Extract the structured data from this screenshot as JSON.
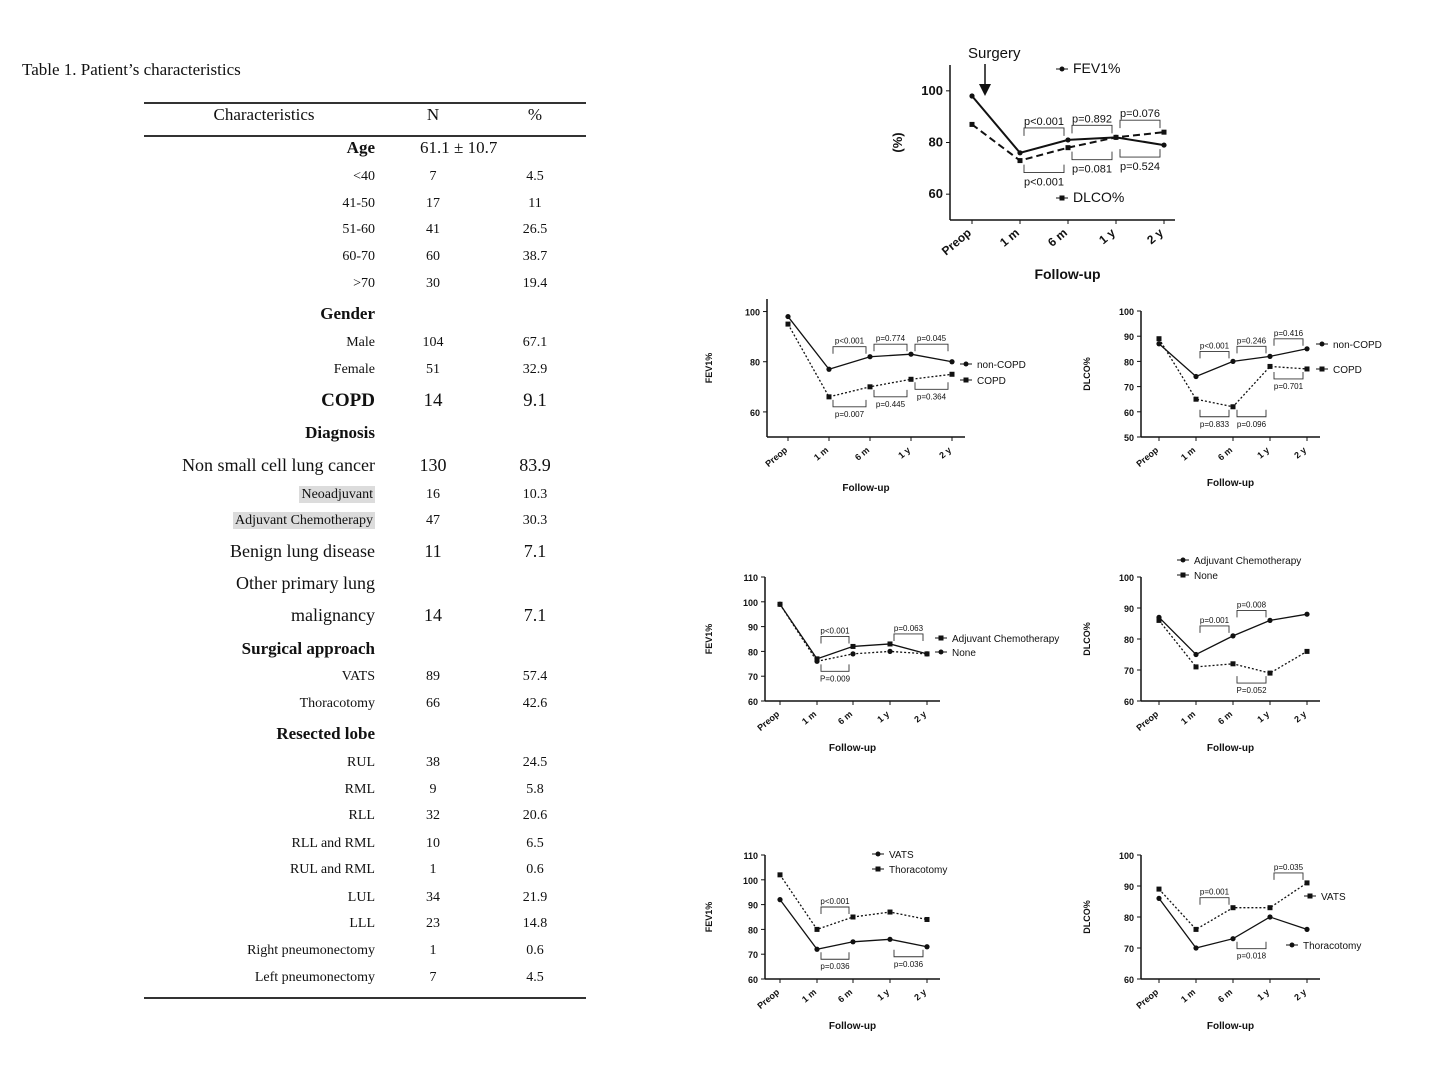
{
  "table": {
    "title": "Table 1. Patient’s characteristics",
    "headers": [
      "Characteristics",
      "N",
      "%"
    ],
    "rows": [
      {
        "label": "Age",
        "n": "61.1 ± 10.7",
        "pct": "",
        "style": "section",
        "merged": true
      },
      {
        "label": "<40",
        "n": "7",
        "pct": "4.5",
        "style": "sub"
      },
      {
        "label": "41-50",
        "n": "17",
        "pct": "11",
        "style": "sub"
      },
      {
        "label": "51-60",
        "n": "41",
        "pct": "26.5",
        "style": "sub"
      },
      {
        "label": "60-70",
        "n": "60",
        "pct": "38.7",
        "style": "sub"
      },
      {
        "label": ">70",
        "n": "30",
        "pct": "19.4",
        "style": "sub"
      },
      {
        "label": "Gender",
        "n": "",
        "pct": "",
        "style": "section"
      },
      {
        "label": "Male",
        "n": "104",
        "pct": "67.1",
        "style": "sub"
      },
      {
        "label": "Female",
        "n": "51",
        "pct": "32.9",
        "style": "sub"
      },
      {
        "label": "COPD",
        "n": "14",
        "pct": "9.1",
        "style": "section-big"
      },
      {
        "label": "Diagnosis",
        "n": "",
        "pct": "",
        "style": "section"
      },
      {
        "label": "Non small cell lung cancer",
        "n": "130",
        "pct": "83.9",
        "style": "large"
      },
      {
        "label": "Neoadjuvant",
        "n": "16",
        "pct": "10.3",
        "style": "sub-hl"
      },
      {
        "label": "Adjuvant Chemotherapy",
        "n": "47",
        "pct": "30.3",
        "style": "sub-hl"
      },
      {
        "label": "Benign lung disease",
        "n": "11",
        "pct": "7.1",
        "style": "large"
      },
      {
        "label": "Other primary lung",
        "n": "",
        "pct": "",
        "style": "large"
      },
      {
        "label": "malignancy",
        "n": "14",
        "pct": "7.1",
        "style": "large"
      },
      {
        "label": "Surgical approach",
        "n": "",
        "pct": "",
        "style": "section"
      },
      {
        "label": "VATS",
        "n": "89",
        "pct": "57.4",
        "style": "sub"
      },
      {
        "label": "Thoracotomy",
        "n": "66",
        "pct": "42.6",
        "style": "sub"
      },
      {
        "label": "Resected lobe",
        "n": "",
        "pct": "",
        "style": "section"
      },
      {
        "label": "RUL",
        "n": "38",
        "pct": "24.5",
        "style": "sub"
      },
      {
        "label": "RML",
        "n": "9",
        "pct": "5.8",
        "style": "sub"
      },
      {
        "label": "RLL",
        "n": "32",
        "pct": "20.6",
        "style": "sub"
      },
      {
        "label": "RLL and RML",
        "n": "10",
        "pct": "6.5",
        "style": "sub"
      },
      {
        "label": "RUL and RML",
        "n": "1",
        "pct": "0.6",
        "style": "sub"
      },
      {
        "label": "LUL",
        "n": "34",
        "pct": "21.9",
        "style": "sub"
      },
      {
        "label": "LLL",
        "n": "23",
        "pct": "14.8",
        "style": "sub"
      },
      {
        "label": "Right pneumonectomy",
        "n": "1",
        "pct": "0.6",
        "style": "sub"
      },
      {
        "label": "Left pneumonectomy",
        "n": "7",
        "pct": "4.5",
        "style": "sub"
      }
    ]
  },
  "chart_data": [
    {
      "type": "line",
      "x": [
        "Preop",
        "1 m",
        "6 m",
        "1 y",
        "2 y"
      ],
      "xlabel": "Follow-up",
      "ylabel": "(%)",
      "ylim": [
        50,
        110
      ],
      "yticks": [
        60,
        80,
        100
      ],
      "annotation": "Surgery",
      "series": [
        {
          "name": "FEV1%",
          "style": "solid",
          "marker": "circle",
          "values": [
            98,
            76,
            81,
            82,
            79
          ]
        },
        {
          "name": "DLCO%",
          "style": "dashed",
          "marker": "square",
          "values": [
            87,
            73,
            78,
            82,
            84
          ]
        }
      ],
      "pvalues": [
        {
          "text": "p<0.001",
          "from": 1,
          "to": 2,
          "pos": "above"
        },
        {
          "text": "p=0.892",
          "from": 2,
          "to": 3,
          "pos": "above"
        },
        {
          "text": "p=0.076",
          "from": 3,
          "to": 4,
          "pos": "above"
        },
        {
          "text": "p<0.001",
          "from": 1,
          "to": 2,
          "pos": "below"
        },
        {
          "text": "p=0.081",
          "from": 2,
          "to": 3,
          "pos": "below"
        },
        {
          "text": "p=0.524",
          "from": 3,
          "to": 4,
          "pos": "below"
        }
      ]
    },
    {
      "type": "line",
      "x": [
        "Preop",
        "1 m",
        "6 m",
        "1 y",
        "2 y"
      ],
      "xlabel": "Follow-up",
      "ylabel": "FEV1%",
      "ylim": [
        50,
        105
      ],
      "yticks": [
        60,
        80,
        100
      ],
      "series": [
        {
          "name": "non-COPD",
          "style": "solid",
          "marker": "circle",
          "values": [
            98,
            77,
            82,
            83,
            80
          ]
        },
        {
          "name": "COPD",
          "style": "dotted",
          "marker": "square",
          "values": [
            95,
            66,
            70,
            73,
            75
          ]
        }
      ],
      "pvalues": [
        {
          "text": "p<0.001",
          "from": 1,
          "to": 2,
          "pos": "above"
        },
        {
          "text": "p=0.774",
          "from": 2,
          "to": 3,
          "pos": "above"
        },
        {
          "text": "p=0.045",
          "from": 3,
          "to": 4,
          "pos": "above"
        },
        {
          "text": "p=0.007",
          "from": 1,
          "to": 2,
          "pos": "below"
        },
        {
          "text": "p=0.445",
          "from": 2,
          "to": 3,
          "pos": "below"
        },
        {
          "text": "p=0.364",
          "from": 3,
          "to": 4,
          "pos": "below"
        }
      ]
    },
    {
      "type": "line",
      "x": [
        "Preop",
        "1 m",
        "6 m",
        "1 y",
        "2 y"
      ],
      "xlabel": "Follow-up",
      "ylabel": "DLCO%",
      "ylim": [
        50,
        100
      ],
      "yticks": [
        50,
        60,
        70,
        80,
        90,
        100
      ],
      "series": [
        {
          "name": "non-COPD",
          "style": "solid",
          "marker": "circle",
          "values": [
            87,
            74,
            80,
            82,
            85
          ]
        },
        {
          "name": "COPD",
          "style": "dotted",
          "marker": "square",
          "values": [
            89,
            65,
            62,
            78,
            77
          ]
        }
      ],
      "pvalues": [
        {
          "text": "p<0.001",
          "from": 1,
          "to": 2,
          "pos": "above"
        },
        {
          "text": "p=0.246",
          "from": 2,
          "to": 3,
          "pos": "above"
        },
        {
          "text": "p=0.416",
          "from": 3,
          "to": 4,
          "pos": "above"
        },
        {
          "text": "p=0.833",
          "from": 1,
          "to": 2,
          "pos": "below"
        },
        {
          "text": "p=0.096",
          "from": 2,
          "to": 3,
          "pos": "below"
        },
        {
          "text": "p=0.701",
          "from": 3,
          "to": 4,
          "pos": "below"
        }
      ]
    },
    {
      "type": "line",
      "x": [
        "Preop",
        "1 m",
        "6 m",
        "1 y",
        "2 y"
      ],
      "xlabel": "Follow-up",
      "ylabel": "FEV1%",
      "ylim": [
        60,
        110
      ],
      "yticks": [
        60,
        70,
        80,
        90,
        100,
        110
      ],
      "series": [
        {
          "name": "Adjuvant Chemotherapy",
          "style": "solid",
          "marker": "square",
          "values": [
            99,
            77,
            82,
            83,
            79
          ]
        },
        {
          "name": "None",
          "style": "dotted",
          "marker": "circle",
          "values": [
            99,
            76,
            79,
            80,
            79
          ]
        }
      ],
      "pvalues": [
        {
          "text": "p<0.001",
          "from": 1,
          "to": 2,
          "pos": "above"
        },
        {
          "text": "p=0.063",
          "from": 3,
          "to": 4,
          "pos": "above"
        },
        {
          "text": "P=0.009",
          "from": 1,
          "to": 2,
          "pos": "below"
        }
      ]
    },
    {
      "type": "line",
      "x": [
        "Preop",
        "1 m",
        "6 m",
        "1 y",
        "2 y"
      ],
      "xlabel": "Follow-up",
      "ylabel": "DLCO%",
      "ylim": [
        60,
        100
      ],
      "yticks": [
        60,
        70,
        80,
        90,
        100
      ],
      "series": [
        {
          "name": "Adjuvant Chemotherapy",
          "style": "solid",
          "marker": "circle",
          "values": [
            87,
            75,
            81,
            86,
            88
          ]
        },
        {
          "name": "None",
          "style": "dotted",
          "marker": "square",
          "values": [
            86,
            71,
            72,
            69,
            76
          ]
        }
      ],
      "pvalues": [
        {
          "text": "p=0.001",
          "from": 1,
          "to": 2,
          "pos": "above"
        },
        {
          "text": "p=0.008",
          "from": 2,
          "to": 3,
          "pos": "above"
        },
        {
          "text": "P=0.052",
          "from": 2,
          "to": 3,
          "pos": "below"
        }
      ]
    },
    {
      "type": "line",
      "x": [
        "Preop",
        "1 m",
        "6 m",
        "1 y",
        "2 y"
      ],
      "xlabel": "Follow-up",
      "ylabel": "FEV1%",
      "ylim": [
        60,
        110
      ],
      "yticks": [
        60,
        70,
        80,
        90,
        100,
        110
      ],
      "series": [
        {
          "name": "VATS",
          "style": "solid",
          "marker": "circle",
          "values": [
            92,
            72,
            75,
            76,
            73
          ]
        },
        {
          "name": "Thoracotomy",
          "style": "dotted",
          "marker": "square",
          "values": [
            102,
            80,
            85,
            87,
            84
          ]
        }
      ],
      "pvalues": [
        {
          "text": "p<0.001",
          "from": 1,
          "to": 2,
          "pos": "above"
        },
        {
          "text": "p=0.036",
          "from": 1,
          "to": 2,
          "pos": "below"
        },
        {
          "text": "p=0.036",
          "from": 3,
          "to": 4,
          "pos": "below"
        }
      ]
    },
    {
      "type": "line",
      "x": [
        "Preop",
        "1 m",
        "6 m",
        "1 y",
        "2 y"
      ],
      "xlabel": "Follow-up",
      "ylabel": "DLCO%",
      "ylim": [
        60,
        100
      ],
      "yticks": [
        60,
        70,
        80,
        90,
        100
      ],
      "series": [
        {
          "name": "VATS",
          "style": "dotted",
          "marker": "square",
          "values": [
            89,
            76,
            83,
            83,
            91
          ]
        },
        {
          "name": "Thoracotomy",
          "style": "solid",
          "marker": "circle",
          "values": [
            86,
            70,
            73,
            80,
            76
          ]
        }
      ],
      "pvalues": [
        {
          "text": "p=0.001",
          "from": 1,
          "to": 2,
          "pos": "above"
        },
        {
          "text": "p=0.035",
          "from": 3,
          "to": 4,
          "pos": "above"
        },
        {
          "text": "p=0.018",
          "from": 2,
          "to": 3,
          "pos": "below"
        }
      ]
    }
  ]
}
